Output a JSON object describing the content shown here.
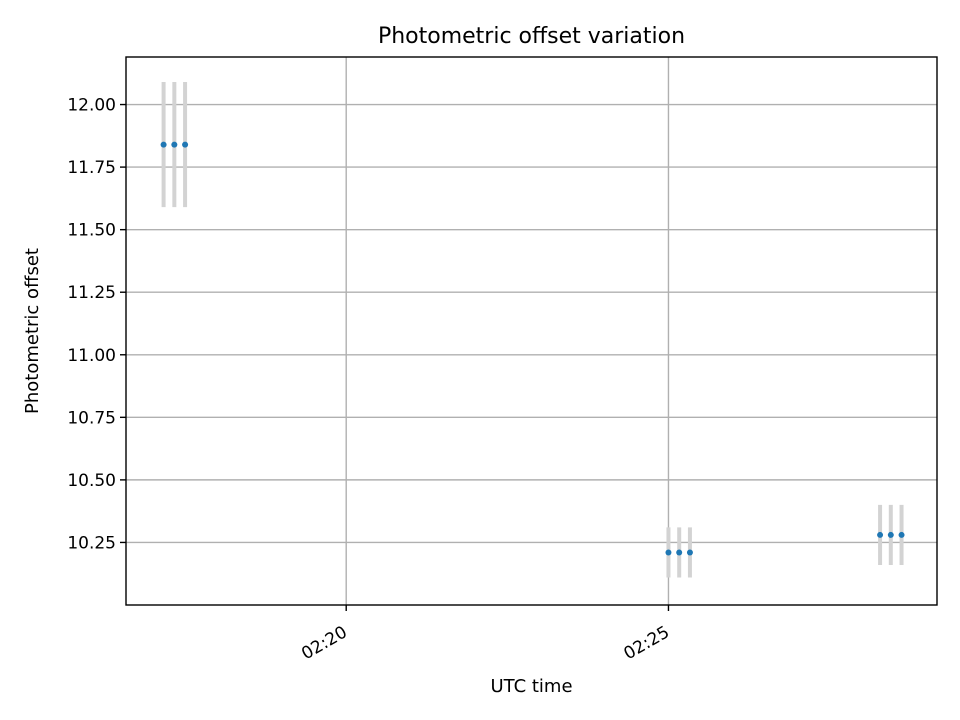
{
  "chart_data": {
    "type": "scatter",
    "title": "Photometric offset variation",
    "xlabel": "UTC time",
    "ylabel": "Photometric offset",
    "grid": true,
    "x_axis": {
      "kind": "time",
      "range": [
        "02:16:35",
        "02:29:10"
      ],
      "ticks": [
        "02:20",
        "02:25"
      ]
    },
    "y_axis": {
      "range": [
        10.0,
        12.19
      ],
      "ticks": [
        "10.25",
        "10.50",
        "10.75",
        "11.00",
        "11.25",
        "11.50",
        "11.75",
        "12.00"
      ]
    },
    "points": [
      {
        "x": "02:17:10",
        "y": 11.84,
        "yerr": 0.25
      },
      {
        "x": "02:17:20",
        "y": 11.84,
        "yerr": 0.25
      },
      {
        "x": "02:17:30",
        "y": 11.84,
        "yerr": 0.25
      },
      {
        "x": "02:25:00",
        "y": 10.21,
        "yerr": 0.1
      },
      {
        "x": "02:25:10",
        "y": 10.21,
        "yerr": 0.1
      },
      {
        "x": "02:25:20",
        "y": 10.21,
        "yerr": 0.1
      },
      {
        "x": "02:28:17",
        "y": 10.28,
        "yerr": 0.12
      },
      {
        "x": "02:28:27",
        "y": 10.28,
        "yerr": 0.12
      },
      {
        "x": "02:28:37",
        "y": 10.28,
        "yerr": 0.12
      }
    ]
  }
}
